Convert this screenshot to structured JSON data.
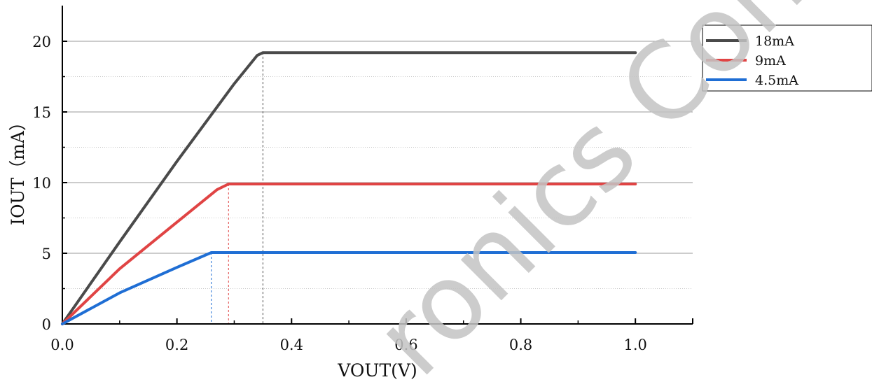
{
  "chart_data": {
    "type": "line",
    "xlabel": "VOUT(V)",
    "ylabel": "IOUT（mA）",
    "xlim": [
      0.0,
      1.1
    ],
    "ylim": [
      0,
      22.5
    ],
    "xticks": [
      0.0,
      0.2,
      0.4,
      0.6,
      0.8,
      1.0
    ],
    "xtick_labels": [
      "0.0",
      "0.2",
      "0.4",
      "0.6",
      "0.8",
      "1.0"
    ],
    "yticks": [
      0,
      5,
      10,
      15,
      20
    ],
    "ytick_labels": [
      "0",
      "5",
      "10",
      "15",
      "20"
    ],
    "grid": "horizontal",
    "legend_position": "top-right",
    "series": [
      {
        "name": "18mA",
        "color": "#4a4a4a",
        "knee_x": 0.35,
        "x": [
          0.0,
          0.1,
          0.2,
          0.3,
          0.34,
          0.35,
          0.4,
          0.6,
          0.8,
          1.0
        ],
        "y": [
          0.0,
          5.8,
          11.5,
          17.0,
          19.0,
          19.2,
          19.2,
          19.2,
          19.2,
          19.2
        ]
      },
      {
        "name": "9mA",
        "color": "#e04444",
        "knee_x": 0.29,
        "x": [
          0.0,
          0.1,
          0.2,
          0.27,
          0.29,
          0.4,
          0.6,
          0.8,
          1.0
        ],
        "y": [
          0.0,
          3.9,
          7.2,
          9.5,
          9.9,
          9.9,
          9.9,
          9.9,
          9.9
        ]
      },
      {
        "name": "4.5mA",
        "color": "#1f6ed4",
        "knee_x": 0.26,
        "x": [
          0.0,
          0.1,
          0.2,
          0.26,
          0.4,
          0.6,
          0.8,
          1.0
        ],
        "y": [
          0.0,
          2.2,
          4.0,
          5.05,
          5.05,
          5.05,
          5.05,
          5.05
        ]
      }
    ]
  },
  "watermark": {
    "text": "ronics Confidential"
  }
}
